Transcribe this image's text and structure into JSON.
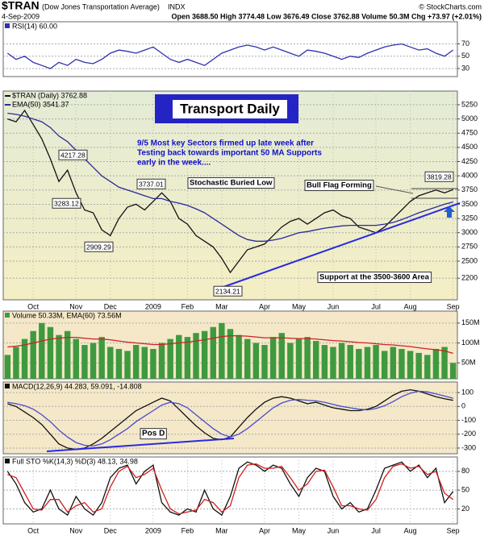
{
  "header": {
    "symbol": "$TRAN",
    "name": "(Dow Jones Transportation Average)",
    "exchange": "INDX",
    "date": "4-Sep-2009",
    "quote": "Open 3688.50 High 3774.48 Low 3676.49 Close 3762.88 Volume 50.3M Chg +73.97 (+2.01%)",
    "credit": "© StockCharts.com"
  },
  "chart_data": [
    {
      "type": "line",
      "title": "RSI(14) 60.00",
      "ylim": [
        17,
        106
      ],
      "yticks": [
        70,
        50,
        30
      ],
      "grid": true,
      "series": [
        {
          "name": "RSI",
          "color": "#3030b0",
          "values": [
            55,
            45,
            50,
            40,
            35,
            30,
            40,
            35,
            45,
            40,
            38,
            45,
            55,
            60,
            58,
            55,
            60,
            65,
            55,
            45,
            40,
            45,
            40,
            35,
            45,
            55,
            60,
            65,
            68,
            65,
            60,
            65,
            60,
            55,
            50,
            60,
            58,
            55,
            50,
            45,
            50,
            48,
            55,
            60,
            65,
            68,
            70,
            65,
            60,
            62,
            55,
            50,
            60
          ]
        }
      ]
    },
    {
      "type": "line",
      "ylim": [
        1820,
        5490
      ],
      "yticks": [
        5250,
        5000,
        4750,
        4500,
        4250,
        4000,
        3750,
        3500,
        3250,
        3000,
        2750,
        2500,
        2200
      ],
      "grid": true,
      "categories": [
        null,
        null,
        null,
        "Oct",
        null,
        null,
        null,
        null,
        "Nov",
        null,
        null,
        null,
        "Dec",
        null,
        null,
        null,
        null,
        "2009",
        null,
        null,
        null,
        "Feb",
        null,
        null,
        null,
        "Mar",
        null,
        null,
        null,
        null,
        "Apr",
        null,
        null,
        null,
        "May",
        null,
        null,
        null,
        "Jun",
        null,
        null,
        null,
        null,
        "Jul",
        null,
        null,
        null,
        "Aug",
        null,
        null,
        null,
        null,
        "Sep"
      ],
      "series": [
        {
          "name": "$TRAN (Daily) 3762.88",
          "color": "#111111",
          "values": [
            5000,
            4950,
            5150,
            4900,
            4650,
            4300,
            3900,
            4100,
            3700,
            3400,
            3350,
            3050,
            2950,
            3250,
            3450,
            3500,
            3400,
            3550,
            3700,
            3550,
            3250,
            3150,
            2950,
            2850,
            2750,
            2550,
            2300,
            2500,
            2700,
            2750,
            2800,
            2950,
            3100,
            3200,
            3250,
            3150,
            3250,
            3350,
            3400,
            3300,
            3250,
            3100,
            3050,
            3000,
            3100,
            3250,
            3400,
            3550,
            3650,
            3700,
            3750,
            3700,
            3760
          ]
        },
        {
          "name": "EMA(50) 3541.37",
          "color": "#2a2a9a",
          "values": [
            5100,
            5080,
            5050,
            5000,
            4950,
            4850,
            4700,
            4600,
            4450,
            4300,
            4150,
            4000,
            3900,
            3800,
            3750,
            3700,
            3650,
            3600,
            3600,
            3550,
            3520,
            3480,
            3420,
            3350,
            3250,
            3150,
            3050,
            2950,
            2880,
            2850,
            2850,
            2870,
            2900,
            2950,
            3000,
            3020,
            3050,
            3080,
            3100,
            3120,
            3130,
            3130,
            3130,
            3130,
            3150,
            3180,
            3230,
            3290,
            3350,
            3400,
            3450,
            3500,
            3540
          ]
        }
      ],
      "annotations": [
        "Transport Daily",
        "9/5  Most key Sectors firmed up late week after",
        "Testing back towards important 50 MA Supports",
        "early in the week....",
        "Stochastic Buried Low",
        "Bull Flag Forming",
        "Support at the 3500-3600 Area",
        "4217.28",
        "3283.12",
        "2909.29",
        "3737.01",
        "2134.21",
        "3819.28"
      ]
    },
    {
      "type": "bar",
      "title": "Volume 50.33M, EMA(60) 73.56M",
      "ylim": [
        10,
        180
      ],
      "grid": true,
      "yticks": [
        {
          "value": 150,
          "label": "150M"
        },
        {
          "value": 100,
          "label": "100M"
        },
        {
          "value": 50,
          "label": "50M"
        }
      ],
      "series": [
        {
          "name": "Volume",
          "color": "#3f9a3f",
          "values": [
            70,
            90,
            110,
            130,
            150,
            140,
            120,
            130,
            110,
            95,
            100,
            115,
            90,
            85,
            80,
            95,
            90,
            85,
            100,
            110,
            120,
            115,
            125,
            130,
            140,
            150,
            135,
            120,
            110,
            100,
            95,
            115,
            125,
            100,
            110,
            115,
            105,
            95,
            90,
            100,
            95,
            85,
            90,
            95,
            80,
            90,
            85,
            80,
            75,
            70,
            85,
            90,
            50
          ]
        },
        {
          "name": "EMA(60)",
          "type": "line",
          "color": "#d02020",
          "values": [
            90,
            92,
            95,
            100,
            105,
            110,
            112,
            114,
            114,
            112,
            110,
            110,
            108,
            105,
            102,
            100,
            98,
            96,
            96,
            98,
            100,
            102,
            105,
            108,
            112,
            116,
            118,
            118,
            117,
            115,
            113,
            113,
            113,
            112,
            111,
            111,
            110,
            108,
            106,
            105,
            103,
            101,
            100,
            98,
            96,
            95,
            93,
            91,
            88,
            85,
            83,
            80,
            74
          ]
        }
      ]
    },
    {
      "type": "line",
      "title": "MACD(12,26,9) 44.283, 59.091, -14.808",
      "ylim": [
        -341,
        176
      ],
      "yticks": [
        100,
        0,
        -100,
        -200,
        -300
      ],
      "grid": true,
      "series": [
        {
          "name": "MACD",
          "color": "#111111",
          "values": [
            20,
            0,
            -40,
            -80,
            -130,
            -200,
            -270,
            -300,
            -310,
            -300,
            -270,
            -230,
            -180,
            -130,
            -80,
            -30,
            0,
            30,
            60,
            40,
            -20,
            -80,
            -140,
            -190,
            -230,
            -240,
            -220,
            -150,
            -80,
            -20,
            30,
            60,
            70,
            60,
            40,
            20,
            30,
            10,
            -10,
            -20,
            -30,
            -30,
            -20,
            0,
            40,
            80,
            110,
            120,
            110,
            90,
            70,
            55,
            44
          ]
        },
        {
          "name": "Signal",
          "color": "#4a4ad0",
          "values": [
            30,
            20,
            5,
            -20,
            -60,
            -110,
            -170,
            -220,
            -260,
            -280,
            -285,
            -270,
            -240,
            -200,
            -160,
            -110,
            -70,
            -30,
            10,
            30,
            20,
            -10,
            -60,
            -110,
            -160,
            -200,
            -220,
            -200,
            -160,
            -110,
            -60,
            -10,
            25,
            45,
            50,
            45,
            40,
            30,
            15,
            0,
            -10,
            -20,
            -25,
            -15,
            5,
            35,
            70,
            95,
            110,
            105,
            90,
            75,
            59
          ]
        }
      ],
      "annotations": [
        "Pos D"
      ]
    },
    {
      "type": "line",
      "title": "Full STO %K(14,3) %D(3) 48.13, 34.98",
      "ylim": [
        -4,
        103
      ],
      "yticks": [
        80,
        50,
        20
      ],
      "grid": true,
      "categories": [
        null,
        null,
        null,
        "Oct",
        null,
        null,
        null,
        null,
        "Nov",
        null,
        null,
        null,
        "Dec",
        null,
        null,
        null,
        null,
        "2009",
        null,
        null,
        null,
        "Feb",
        null,
        null,
        null,
        "Mar",
        null,
        null,
        null,
        null,
        "Apr",
        null,
        null,
        null,
        "May",
        null,
        null,
        null,
        "Jun",
        null,
        null,
        null,
        null,
        "Jul",
        null,
        null,
        null,
        "Aug",
        null,
        null,
        null,
        null,
        "Sep"
      ],
      "series": [
        {
          "name": "%K",
          "color": "#111111",
          "values": [
            80,
            60,
            30,
            15,
            20,
            50,
            20,
            10,
            40,
            20,
            10,
            30,
            70,
            85,
            90,
            60,
            80,
            90,
            30,
            15,
            10,
            20,
            15,
            50,
            20,
            10,
            40,
            85,
            95,
            90,
            80,
            90,
            85,
            60,
            40,
            70,
            85,
            80,
            40,
            20,
            30,
            15,
            20,
            50,
            85,
            90,
            95,
            80,
            90,
            70,
            85,
            30,
            48
          ]
        },
        {
          "name": "%D",
          "color": "#d02020",
          "values": [
            75,
            70,
            45,
            20,
            18,
            35,
            35,
            15,
            25,
            30,
            15,
            20,
            55,
            80,
            88,
            70,
            75,
            85,
            50,
            20,
            12,
            15,
            18,
            35,
            30,
            15,
            25,
            70,
            90,
            92,
            85,
            85,
            88,
            70,
            50,
            60,
            80,
            82,
            55,
            25,
            25,
            20,
            18,
            35,
            70,
            88,
            92,
            85,
            88,
            75,
            80,
            45,
            35
          ]
        }
      ]
    }
  ]
}
